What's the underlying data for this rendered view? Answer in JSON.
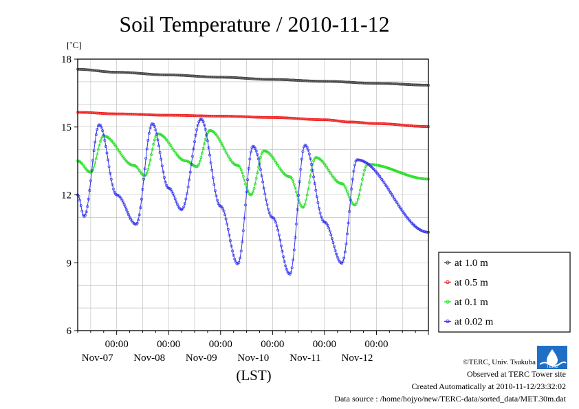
{
  "chart_data": {
    "type": "line",
    "title": "Soil Temperature / 2010-11-12",
    "ylabel": "[˚C]",
    "xlabel": "(LST)",
    "ylim": [
      6,
      18
    ],
    "yticks": [
      6,
      9,
      12,
      15,
      18
    ],
    "xlim": [
      "2010-11-06T06:00",
      "2010-11-13T00:00"
    ],
    "x_major_ticks": [
      {
        "time": "2010-11-07T00:00",
        "label": "00:00",
        "date_label": "Nov-07"
      },
      {
        "time": "2010-11-08T00:00",
        "label": "00:00",
        "date_label": "Nov-08"
      },
      {
        "time": "2010-11-09T00:00",
        "label": "00:00",
        "date_label": "Nov-09"
      },
      {
        "time": "2010-11-10T00:00",
        "label": "00:00",
        "date_label": "Nov-10"
      },
      {
        "time": "2010-11-11T00:00",
        "label": "00:00",
        "date_label": "Nov-11"
      },
      {
        "time": "2010-11-12T00:00",
        "label": "00:00",
        "date_label": "Nov-12"
      }
    ],
    "grid": true,
    "legend": "right",
    "series": [
      {
        "name": "at 1.0 m",
        "color": "#444444",
        "points": [
          [
            "2010-11-06T06:00",
            17.55
          ],
          [
            "2010-11-07T00:00",
            17.42
          ],
          [
            "2010-11-08T00:00",
            17.3
          ],
          [
            "2010-11-09T00:00",
            17.2
          ],
          [
            "2010-11-10T00:00",
            17.1
          ],
          [
            "2010-11-11T00:00",
            17.02
          ],
          [
            "2010-11-12T00:00",
            16.93
          ],
          [
            "2010-11-13T00:00",
            16.85
          ]
        ]
      },
      {
        "name": "at 0.5 m",
        "color": "#ee2222",
        "points": [
          [
            "2010-11-06T06:00",
            15.65
          ],
          [
            "2010-11-07T00:00",
            15.58
          ],
          [
            "2010-11-08T00:00",
            15.52
          ],
          [
            "2010-11-09T00:00",
            15.48
          ],
          [
            "2010-11-10T00:00",
            15.42
          ],
          [
            "2010-11-11T00:00",
            15.32
          ],
          [
            "2010-11-11T12:00",
            15.22
          ],
          [
            "2010-11-12T00:00",
            15.15
          ],
          [
            "2010-11-13T00:00",
            15.02
          ]
        ]
      },
      {
        "name": "at 0.1 m",
        "color": "#22dd22",
        "points": [
          [
            "2010-11-06T06:00",
            13.5
          ],
          [
            "2010-11-06T12:00",
            13.0
          ],
          [
            "2010-11-06T18:00",
            14.6
          ],
          [
            "2010-11-07T08:00",
            13.3
          ],
          [
            "2010-11-07T13:00",
            12.85
          ],
          [
            "2010-11-07T19:00",
            14.7
          ],
          [
            "2010-11-08T08:00",
            13.5
          ],
          [
            "2010-11-08T13:00",
            13.25
          ],
          [
            "2010-11-08T19:00",
            14.85
          ],
          [
            "2010-11-09T08:00",
            13.3
          ],
          [
            "2010-11-09T14:00",
            12.0
          ],
          [
            "2010-11-09T20:00",
            13.95
          ],
          [
            "2010-11-10T08:00",
            12.8
          ],
          [
            "2010-11-10T14:00",
            11.45
          ],
          [
            "2010-11-10T20:00",
            13.65
          ],
          [
            "2010-11-11T08:00",
            12.5
          ],
          [
            "2010-11-11T14:00",
            11.55
          ],
          [
            "2010-11-11T20:00",
            13.35
          ],
          [
            "2010-11-13T00:00",
            12.7
          ]
        ]
      },
      {
        "name": "at 0.02 m",
        "color": "#3333ee",
        "points": [
          [
            "2010-11-06T06:00",
            12.0
          ],
          [
            "2010-11-06T09:00",
            11.05
          ],
          [
            "2010-11-06T16:00",
            15.1
          ],
          [
            "2010-11-07T00:00",
            12.0
          ],
          [
            "2010-11-07T09:00",
            10.7
          ],
          [
            "2010-11-07T16:30",
            15.15
          ],
          [
            "2010-11-08T00:00",
            12.3
          ],
          [
            "2010-11-08T06:00",
            11.35
          ],
          [
            "2010-11-08T15:00",
            15.35
          ],
          [
            "2010-11-09T00:00",
            11.5
          ],
          [
            "2010-11-09T08:00",
            8.95
          ],
          [
            "2010-11-09T15:00",
            14.15
          ],
          [
            "2010-11-10T00:00",
            11.0
          ],
          [
            "2010-11-10T08:00",
            8.5
          ],
          [
            "2010-11-10T15:00",
            14.2
          ],
          [
            "2010-11-11T00:00",
            10.8
          ],
          [
            "2010-11-11T08:00",
            8.98
          ],
          [
            "2010-11-11T15:00",
            13.55
          ],
          [
            "2010-11-13T00:00",
            10.35
          ]
        ]
      }
    ]
  },
  "credits": {
    "copyright": "©TERC, Univ. Tsukuba",
    "observed": "Observed at TERC Tower site",
    "created": "Created Automatically at 2010-11-12/23:32:02",
    "source": "Data source : /home/hojyo/new/TERC-data/sorted_data/MET.30m.dat",
    "logo_text": "TERC"
  }
}
